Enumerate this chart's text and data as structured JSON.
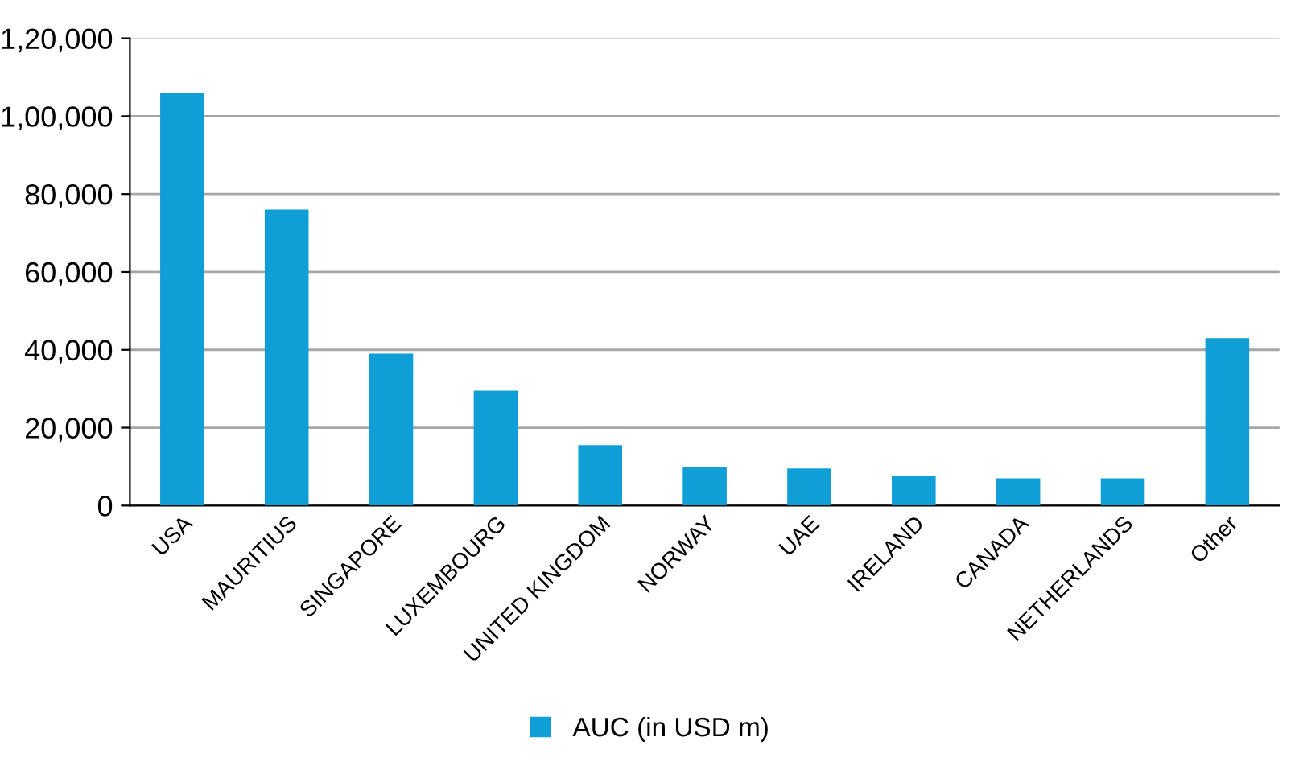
{
  "chart_data": {
    "type": "bar",
    "categories": [
      "USA",
      "MAURITIUS",
      "SINGAPORE",
      "LUXEMBOURG",
      "UNITED KINGDOM",
      "NORWAY",
      "UAE",
      "IRELAND",
      "CANADA",
      "NETHERLANDS",
      "Other"
    ],
    "series": [
      {
        "name": "AUC (in USD m)",
        "color": "#0f9ed5",
        "values": [
          106000,
          76000,
          39000,
          29500,
          15500,
          10000,
          9500,
          7500,
          7000,
          7000,
          43000
        ]
      }
    ],
    "ylim": [
      0,
      120000
    ],
    "yticks": [
      0,
      {
        "value": 20000,
        "label": "20,000"
      },
      {
        "value": 40000,
        "label": "40,000"
      },
      {
        "value": 60000,
        "label": "60,000"
      },
      {
        "value": 80000,
        "label": "80,000"
      },
      {
        "value": 100000,
        "label": "1,00,000"
      },
      {
        "value": 120000,
        "label": "1,20,000"
      }
    ],
    "grid": "y",
    "legend": "bottom"
  }
}
